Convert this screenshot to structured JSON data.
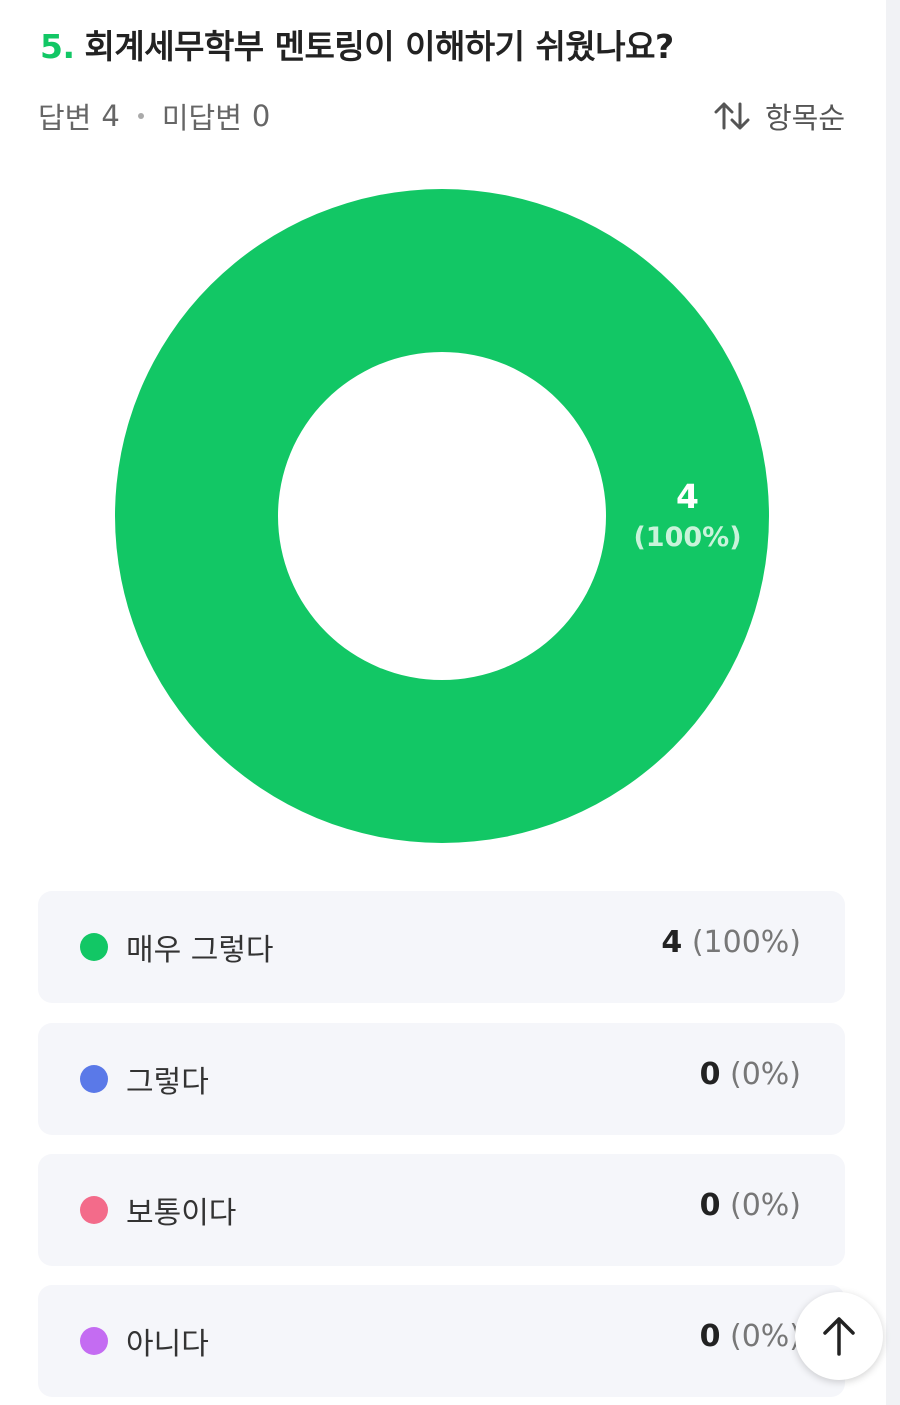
{
  "question": {
    "number": "5.",
    "title": "회계세무학부 멘토링이 이해하기 쉬웠나요?"
  },
  "stats": {
    "answered_label": "답변",
    "answered_count": "4",
    "unanswered_label": "미답변",
    "unanswered_count": "0"
  },
  "sort": {
    "label": "항목순",
    "icon": "sort-arrows-icon"
  },
  "chart_data": {
    "type": "pie",
    "categories": [
      "매우 그렇다",
      "그렇다",
      "보통이다",
      "아니다"
    ],
    "values": [
      4,
      0,
      0,
      0
    ],
    "percent_labels": [
      "100%",
      "0%",
      "0%",
      "0%"
    ],
    "colors": [
      "#12c765",
      "#5a79e8",
      "#f36b8a",
      "#c46cf2"
    ],
    "slice_labels": [
      {
        "value": "4",
        "percent": "(100%)"
      }
    ],
    "legend_placement": "bottom",
    "donut": true
  },
  "legend": [
    {
      "label": "매우 그렇다",
      "count": "4",
      "percent": "(100%)",
      "color": "#12c765"
    },
    {
      "label": "그렇다",
      "count": "0",
      "percent": "(0%)",
      "color": "#5a79e8"
    },
    {
      "label": "보통이다",
      "count": "0",
      "percent": "(0%)",
      "color": "#f36b8a"
    },
    {
      "label": "아니다",
      "count": "0",
      "percent": "(0%)",
      "color": "#c46cf2"
    }
  ],
  "scroll_top_button": {
    "icon": "arrow-up-icon"
  }
}
